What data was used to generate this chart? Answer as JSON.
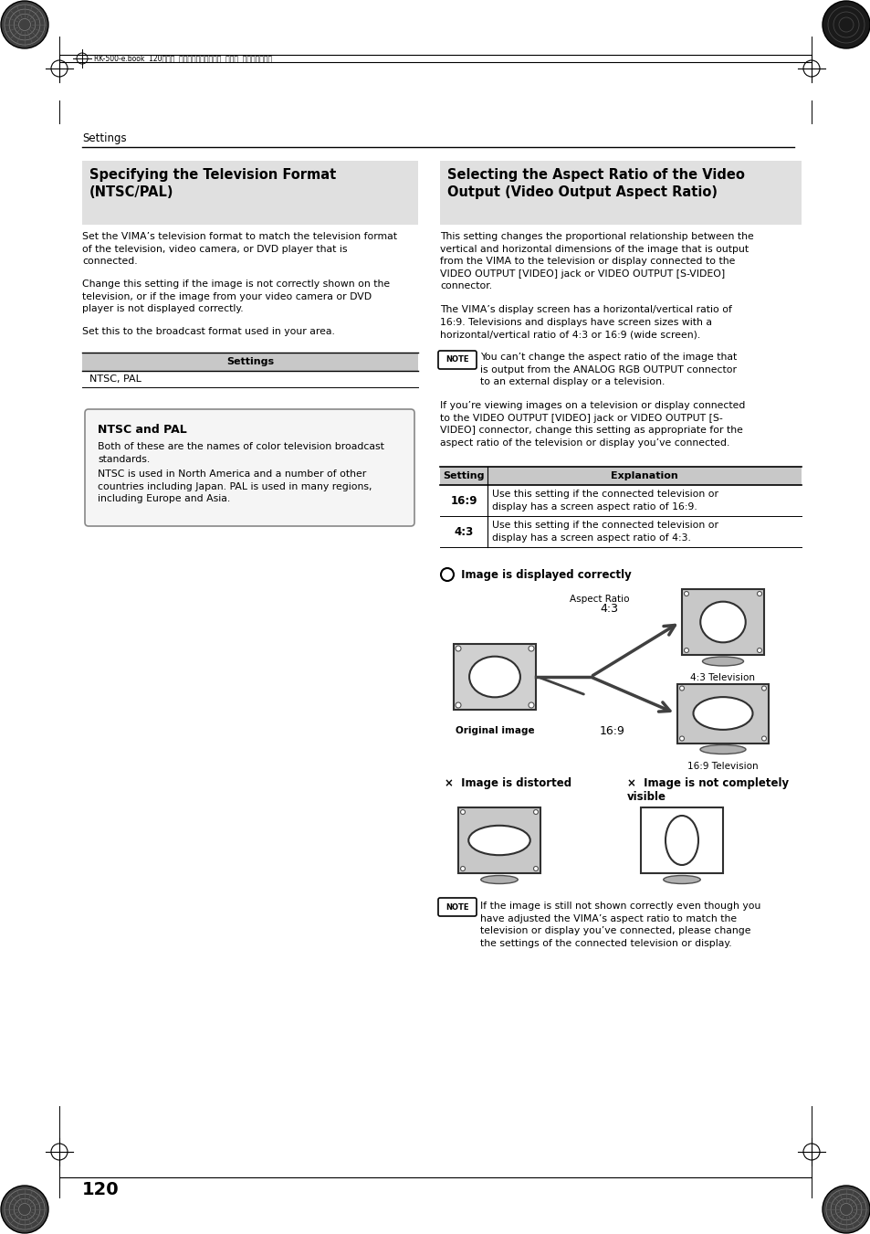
{
  "page_bg": "#ffffff",
  "header_text": "RK-500-e.book  120ページ  ２００６年８月１１日  金曜日  午後４時２９分",
  "settings_label": "Settings",
  "left_title": "Specifying the Television Format\n(NTSC/PAL)",
  "left_body1": "Set the VIMA’s television format to match the television format\nof the television, video camera, or DVD player that is\nconnected.",
  "left_body2": "Change this setting if the image is not correctly shown on the\ntelevision, or if the image from your video camera or DVD\nplayer is not displayed correctly.",
  "left_body3": "Set this to the broadcast format used in your area.",
  "table_header": "Settings",
  "table_row": "NTSC, PAL",
  "ntsc_pal_title": "NTSC and PAL",
  "ntsc_pal_body1": "Both of these are the names of color television broadcast\nstandards.",
  "ntsc_pal_body2": "NTSC is used in North America and a number of other\ncountries including Japan. PAL is used in many regions,\nincluding Europe and Asia.",
  "right_title": "Selecting the Aspect Ratio of the Video\nOutput (Video Output Aspect Ratio)",
  "right_body1": "This setting changes the proportional relationship between the\nvertical and horizontal dimensions of the image that is output\nfrom the VIMA to the television or display connected to the\nVIDEO OUTPUT [VIDEO] jack or VIDEO OUTPUT [S-VIDEO]\nconnector.",
  "right_body2": "The VIMA’s display screen has a horizontal/vertical ratio of\n16:9. Televisions and displays have screen sizes with a\nhorizontal/vertical ratio of 4:3 or 16:9 (wide screen).",
  "note1": "You can’t change the aspect ratio of the image that\nis output from the ANALOG RGB OUTPUT connector\nto an external display or a television.",
  "right_body3": "If you’re viewing images on a television or display connected\nto the VIDEO OUTPUT [VIDEO] jack or VIDEO OUTPUT [S-\nVIDEO] connector, change this setting as appropriate for the\naspect ratio of the television or display you’ve connected.",
  "table2_col1": "Setting",
  "table2_col2": "Explanation",
  "table2_r1c1": "16:9",
  "table2_r1c2": "Use this setting if the connected television or\ndisplay has a screen aspect ratio of 16:9.",
  "table2_r2c1": "4:3",
  "table2_r2c2": "Use this setting if the connected television or\ndisplay has a screen aspect ratio of 4:3.",
  "circle_ok": " Image is displayed correctly",
  "aspect_ratio_label": "Aspect Ratio",
  "label_43": "4:3",
  "label_169": "16:9",
  "tv_43_label": "4:3 Television",
  "tv_169_label": "16:9 Television",
  "orig_label": "Original image",
  "cross_distorted": "×  Image is distorted",
  "cross_notvisible": "×  Image is not completely\nvisible",
  "note2": "If the image is still not shown correctly even though you\nhave adjusted the VIMA’s aspect ratio to match the\ntelevision or display you’ve connected, please change\nthe settings of the connected television or display.",
  "page_number": "120"
}
